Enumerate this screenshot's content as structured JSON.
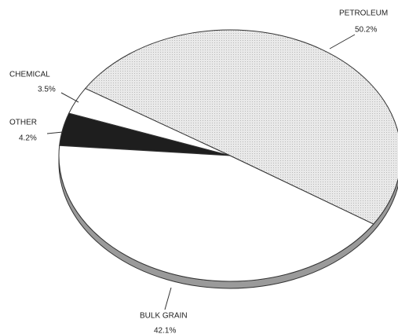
{
  "chart_data": {
    "type": "pie",
    "categories": [
      "PETROLEUM",
      "CHEMICAL",
      "OTHER",
      "BULK GRAIN"
    ],
    "values": [
      50.2,
      3.5,
      4.2,
      42.1
    ],
    "value_labels": [
      "50.2%",
      "3.5%",
      "4.2%",
      "42.1%"
    ],
    "colors": [
      "#e6e6e6",
      "#ffffff",
      "#1e1e1e",
      "#ffffff"
    ]
  }
}
